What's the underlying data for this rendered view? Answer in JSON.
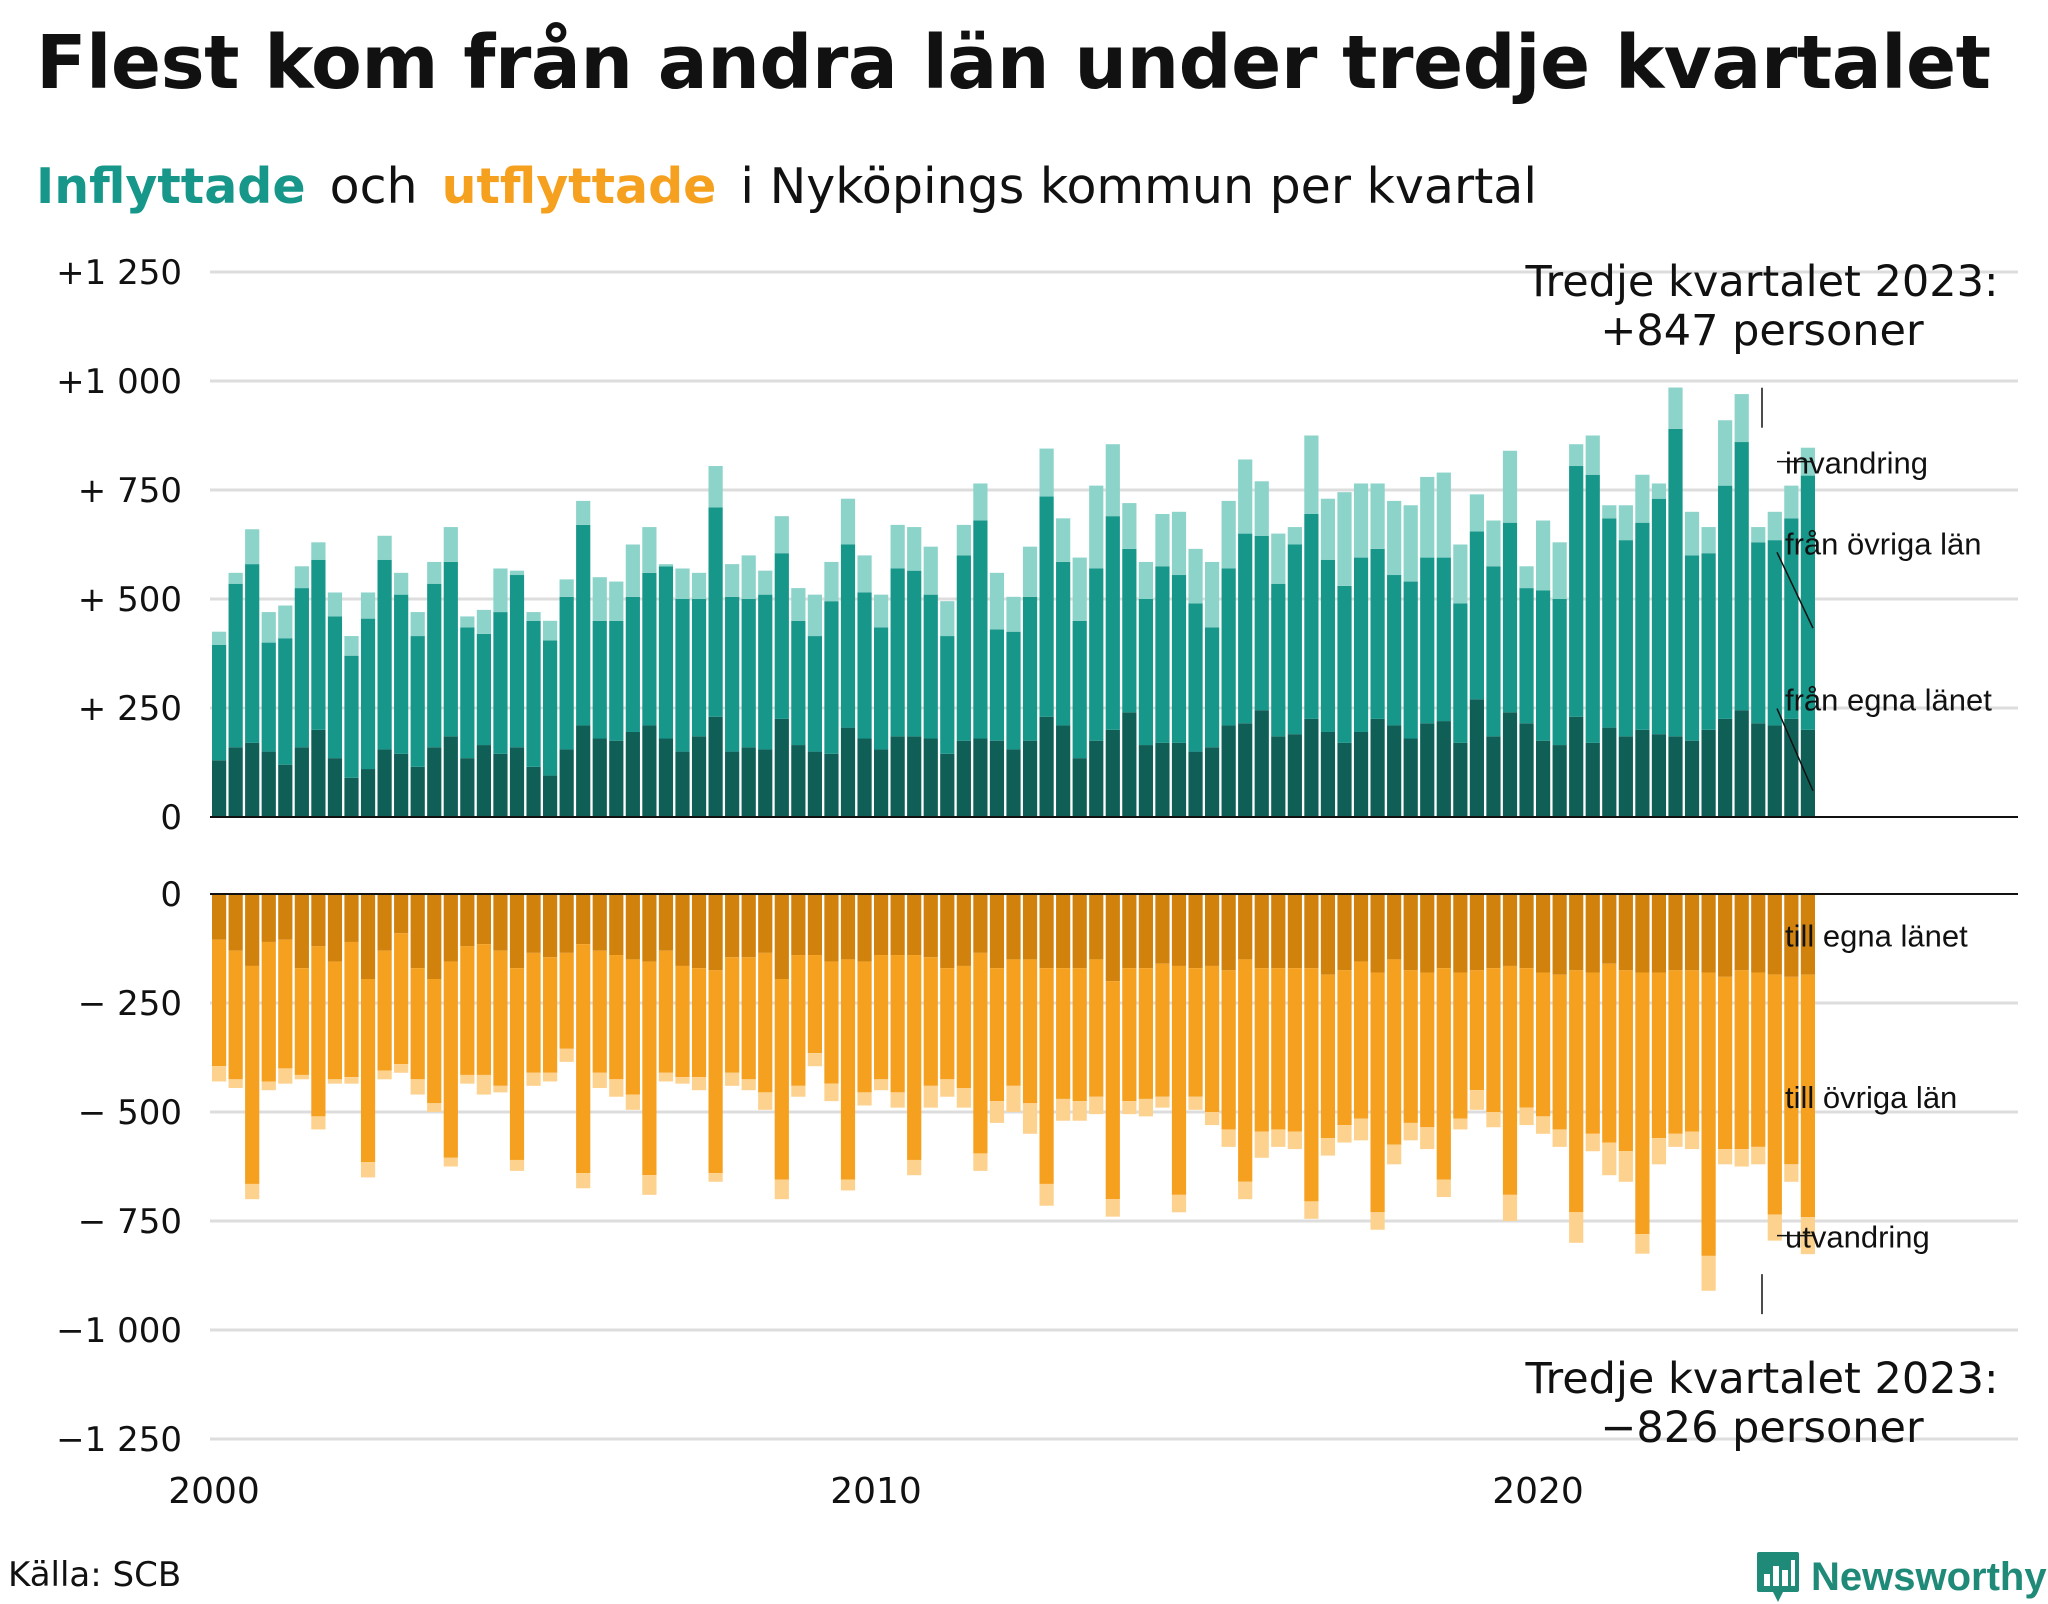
{
  "title": "Flest kom från andra län under tredje kvartalet",
  "subtitle": {
    "inflyttade": "Inflyttade",
    "och": "och",
    "utflyttade": "utflyttade",
    "rest": "i Nyköpings kommun per kvartal"
  },
  "source": "Källa: SCB",
  "brand": "Newsworthy",
  "colors": {
    "in_egna": "#0f5f57",
    "in_ovriga": "#17978a",
    "in_invandring": "#8cd3ca",
    "out_egna": "#d1820d",
    "out_ovriga": "#f5a01f",
    "out_utvandring": "#fdd28e",
    "grid": "#dddddd",
    "brand": "#1f8a78"
  },
  "chart_data": {
    "type": "bar",
    "stacked": true,
    "x_start": "2000 Q1",
    "x_end": "2023 Q3",
    "xtick_labels": [
      "2000",
      "2010",
      "2020"
    ],
    "top_panel": {
      "ylim": [
        0,
        1250
      ],
      "yticks": [
        0,
        250,
        500,
        750,
        1000,
        1250
      ],
      "ytick_labels": [
        "0",
        "+  250",
        "+  500",
        "+  750",
        "+1 000",
        "+1 250"
      ],
      "series": [
        {
          "name": "från egna länet",
          "values": [
            130,
            160,
            170,
            150,
            120,
            160,
            200,
            135,
            90,
            110,
            155,
            145,
            115,
            160,
            185,
            135,
            165,
            145,
            160,
            115,
            95,
            155,
            210,
            180,
            175,
            195,
            210,
            180,
            150,
            185,
            230,
            150,
            160,
            155,
            225,
            165,
            150,
            145,
            205,
            180,
            155,
            185,
            185,
            180,
            145,
            175,
            180,
            175,
            155,
            175,
            230,
            210,
            135,
            175,
            200,
            240,
            165,
            170,
            170,
            150,
            160,
            210,
            215,
            245,
            185,
            190,
            225,
            195,
            170,
            195,
            225,
            210,
            180,
            215,
            220,
            170,
            270,
            185,
            240,
            215,
            175,
            165,
            230,
            170,
            205,
            185,
            200,
            190,
            185,
            175,
            200,
            225,
            245,
            215,
            210,
            225,
            200
          ]
        },
        {
          "name": "från övriga län",
          "values": [
            265,
            375,
            410,
            250,
            290,
            365,
            390,
            325,
            280,
            345,
            435,
            365,
            300,
            375,
            400,
            300,
            255,
            325,
            395,
            335,
            310,
            350,
            460,
            270,
            275,
            310,
            350,
            395,
            350,
            315,
            480,
            355,
            340,
            355,
            380,
            285,
            265,
            350,
            420,
            335,
            280,
            385,
            380,
            330,
            270,
            425,
            500,
            255,
            270,
            330,
            505,
            375,
            315,
            395,
            490,
            375,
            335,
            405,
            385,
            340,
            275,
            360,
            435,
            400,
            350,
            435,
            470,
            395,
            360,
            400,
            390,
            345,
            360,
            380,
            375,
            320,
            385,
            390,
            435,
            310,
            345,
            335,
            575,
            615,
            480,
            450,
            475,
            540,
            705,
            425,
            405,
            535,
            615,
            415,
            425,
            460,
            583
          ]
        },
        {
          "name": "invandring",
          "values": [
            30,
            25,
            80,
            70,
            75,
            50,
            40,
            55,
            45,
            60,
            55,
            50,
            55,
            50,
            80,
            25,
            55,
            100,
            10,
            20,
            45,
            40,
            55,
            100,
            90,
            120,
            105,
            5,
            70,
            60,
            95,
            75,
            100,
            55,
            85,
            75,
            95,
            90,
            105,
            85,
            75,
            100,
            100,
            110,
            80,
            70,
            85,
            130,
            80,
            115,
            110,
            100,
            145,
            190,
            165,
            105,
            85,
            120,
            145,
            125,
            150,
            155,
            170,
            125,
            115,
            40,
            180,
            140,
            215,
            170,
            150,
            170,
            175,
            185,
            195,
            135,
            85,
            105,
            165,
            50,
            160,
            130,
            50,
            90,
            30,
            80,
            110,
            35,
            95,
            100,
            60,
            150,
            110,
            35,
            65,
            75,
            64
          ]
        }
      ],
      "total_labels": [
        "invandring",
        "från övriga län",
        "från egna länet"
      ],
      "annotation": [
        "Tredje kvartalet 2023:",
        "+847 personer"
      ]
    },
    "bottom_panel": {
      "ylim": [
        -1250,
        0
      ],
      "yticks": [
        0,
        -250,
        -500,
        -750,
        -1000,
        -1250
      ],
      "ytick_labels": [
        "0",
        "−  250",
        "−  500",
        "−  750",
        "−1 000",
        "−1 250"
      ],
      "series": [
        {
          "name": "till egna länet",
          "values": [
            -105,
            -130,
            -165,
            -110,
            -105,
            -170,
            -120,
            -155,
            -110,
            -195,
            -130,
            -90,
            -170,
            -195,
            -155,
            -120,
            -115,
            -130,
            -170,
            -135,
            -145,
            -135,
            -115,
            -130,
            -140,
            -150,
            -155,
            -130,
            -165,
            -170,
            -175,
            -145,
            -145,
            -135,
            -195,
            -140,
            -140,
            -155,
            -150,
            -155,
            -140,
            -140,
            -140,
            -145,
            -170,
            -165,
            -135,
            -170,
            -150,
            -150,
            -170,
            -170,
            -170,
            -150,
            -200,
            -170,
            -170,
            -160,
            -165,
            -170,
            -165,
            -175,
            -150,
            -170,
            -170,
            -170,
            -170,
            -185,
            -175,
            -155,
            -180,
            -150,
            -175,
            -180,
            -170,
            -180,
            -175,
            -170,
            -165,
            -170,
            -180,
            -185,
            -175,
            -180,
            -160,
            -175,
            -180,
            -180,
            -175,
            -175,
            -180,
            -190,
            -175,
            -180,
            -185,
            -190,
            -185
          ]
        },
        {
          "name": "till övriga län",
          "values": [
            -290,
            -295,
            -500,
            -320,
            -295,
            -245,
            -390,
            -270,
            -310,
            -420,
            -275,
            -300,
            -255,
            -285,
            -450,
            -295,
            -300,
            -310,
            -440,
            -275,
            -265,
            -220,
            -525,
            -280,
            -285,
            -310,
            -490,
            -280,
            -255,
            -250,
            -465,
            -265,
            -280,
            -320,
            -460,
            -300,
            -225,
            -280,
            -505,
            -300,
            -285,
            -315,
            -470,
            -295,
            -255,
            -280,
            -460,
            -305,
            -290,
            -330,
            -495,
            -300,
            -305,
            -315,
            -500,
            -305,
            -300,
            -305,
            -525,
            -295,
            -335,
            -365,
            -510,
            -375,
            -370,
            -375,
            -535,
            -375,
            -355,
            -360,
            -550,
            -425,
            -350,
            -355,
            -485,
            -335,
            -275,
            -330,
            -525,
            -320,
            -330,
            -355,
            -555,
            -370,
            -410,
            -415,
            -600,
            -380,
            -375,
            -370,
            -650,
            -395,
            -410,
            -400,
            -550,
            -430,
            -556
          ]
        },
        {
          "name": "utvandring",
          "values": [
            -35,
            -20,
            -35,
            -20,
            -35,
            -10,
            -30,
            -10,
            -15,
            -35,
            -20,
            -20,
            -35,
            -20,
            -20,
            -20,
            -45,
            -15,
            -25,
            -30,
            -20,
            -30,
            -35,
            -35,
            -40,
            -35,
            -45,
            -20,
            -15,
            -30,
            -20,
            -30,
            -25,
            -40,
            -45,
            -25,
            -30,
            -40,
            -25,
            -30,
            -25,
            -35,
            -35,
            -50,
            -40,
            -45,
            -40,
            -50,
            -60,
            -70,
            -50,
            -50,
            -45,
            -40,
            -40,
            -30,
            -40,
            -25,
            -40,
            -30,
            -30,
            -40,
            -40,
            -60,
            -40,
            -40,
            -40,
            -40,
            -40,
            -50,
            -40,
            -45,
            -40,
            -50,
            -40,
            -25,
            -45,
            -35,
            -60,
            -40,
            -40,
            -40,
            -70,
            -40,
            -75,
            -70,
            -45,
            -60,
            -30,
            -40,
            -80,
            -35,
            -40,
            -40,
            -60,
            -40,
            -85
          ]
        }
      ],
      "total_labels": [
        "till egna länet",
        "till övriga län",
        "utvandring"
      ],
      "annotation": [
        "Tredje kvartalet 2023:",
        "−826 personer"
      ]
    }
  }
}
